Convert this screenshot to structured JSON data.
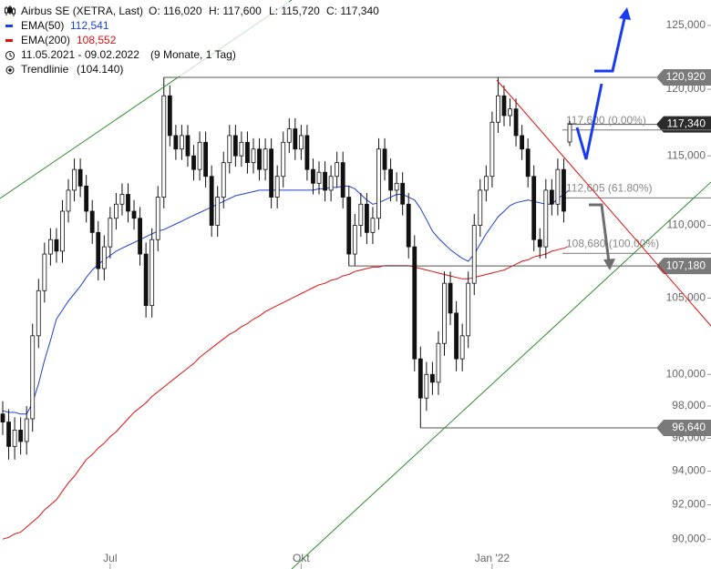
{
  "chart_data": {
    "type": "candlestick",
    "title": "Airbus SE (XETRA, Last)",
    "ohlc_text": [
      "O: 116,020",
      "H: 117,600",
      "L: 115,720",
      "C: 117,340"
    ],
    "period": "11.05.2021 - 09.02.2022",
    "period_note": "(9 Monate, 1 Tag)",
    "trendline": {
      "name": "Trendlinie",
      "label": "(104.140)",
      "color": "#2e8b2e"
    },
    "resistance_color": "#e01010",
    "log_scale": true,
    "ylim": [
      88.3,
      127.05
    ],
    "yticks": [
      {
        "value": 125,
        "label": "125,000"
      },
      {
        "value": 120,
        "label": "120,000"
      },
      {
        "value": 115,
        "label": "115,000"
      },
      {
        "value": 110,
        "label": "110,000"
      },
      {
        "value": 105,
        "label": "105,000"
      },
      {
        "value": 100,
        "label": "100,000"
      },
      {
        "value": 98,
        "label": "98,000"
      },
      {
        "value": 96,
        "label": "96,000"
      },
      {
        "value": 94,
        "label": "94,000"
      },
      {
        "value": 92,
        "label": "92,000"
      },
      {
        "value": 90,
        "label": "90,000"
      }
    ],
    "categories": [
      null,
      null,
      null,
      null,
      null,
      null,
      null,
      null,
      null,
      null,
      null,
      null,
      null,
      null,
      null,
      null,
      null,
      null,
      "Jul",
      null,
      null,
      null,
      null,
      null,
      null,
      null,
      null,
      null,
      null,
      null,
      null,
      null,
      null,
      null,
      null,
      null,
      null,
      null,
      null,
      null,
      null,
      null,
      null,
      null,
      null,
      null,
      null,
      null,
      null,
      null,
      "Okt",
      null,
      null,
      null,
      null,
      null,
      null,
      null,
      null,
      null,
      null,
      null,
      null,
      null,
      null,
      null,
      null,
      null,
      null,
      null,
      null,
      null,
      null,
      null,
      null,
      null,
      null,
      null,
      null,
      null,
      null,
      null,
      "Jan '22",
      null,
      null,
      null,
      null,
      null,
      null,
      null,
      null,
      null,
      null,
      null,
      null,
      null
    ],
    "open": [
      97.5,
      97.0,
      95.5,
      96.5,
      95.8,
      97.2,
      102.5,
      105.5,
      108.0,
      109.0,
      108.2,
      111.0,
      112.5,
      114.0,
      112.8,
      111.0,
      109.5,
      107.0,
      108.5,
      110.5,
      111.5,
      112.2,
      111.0,
      110.5,
      108.0,
      104.5,
      109.0,
      112.0,
      119.5,
      116.5,
      115.5,
      116.5,
      115.0,
      114.0,
      116.0,
      113.5,
      110.0,
      112.0,
      114.5,
      116.5,
      115.0,
      116.0,
      114.5,
      115.5,
      114.0,
      115.5,
      112.0,
      113.5,
      116.0,
      117.0,
      115.5,
      116.5,
      114.0,
      113.0,
      113.8,
      112.5,
      113.5,
      114.5,
      112.0,
      108.0,
      110.0,
      111.5,
      109.5,
      110.5,
      115.5,
      114.0,
      112.5,
      113.0,
      111.5,
      108.5,
      101.0,
      98.5,
      100.0,
      99.5,
      102.0,
      106.0,
      104.0,
      101.0,
      102.5,
      106.0,
      110.0,
      112.5,
      113.5,
      117.5,
      119.5,
      118.0,
      118.5,
      116.5,
      115.5,
      113.5,
      109.0,
      108.5,
      112.5,
      111.5,
      114.0,
      116.02
    ],
    "high": [
      98.3,
      97.8,
      97.3,
      97.3,
      98.0,
      103.3,
      106.3,
      108.8,
      109.8,
      109.8,
      111.8,
      113.3,
      114.8,
      114.8,
      113.6,
      111.8,
      110.3,
      109.3,
      111.3,
      112.3,
      113.0,
      113.0,
      111.8,
      111.3,
      108.8,
      109.8,
      112.8,
      120.92,
      120.3,
      117.3,
      117.3,
      117.3,
      115.8,
      116.8,
      116.8,
      114.3,
      112.8,
      115.3,
      117.3,
      117.3,
      116.8,
      116.8,
      116.3,
      116.3,
      116.3,
      116.3,
      114.3,
      116.8,
      117.8,
      117.8,
      117.3,
      117.3,
      114.8,
      114.6,
      114.6,
      114.3,
      115.3,
      115.3,
      112.8,
      110.8,
      112.3,
      112.3,
      111.3,
      116.3,
      116.3,
      114.8,
      113.8,
      113.8,
      112.3,
      109.3,
      101.8,
      100.8,
      100.8,
      102.8,
      106.8,
      106.8,
      104.8,
      103.3,
      106.8,
      110.8,
      113.3,
      114.3,
      118.3,
      120.92,
      120.3,
      119.3,
      119.3,
      117.3,
      116.3,
      114.3,
      109.8,
      113.3,
      113.3,
      114.8,
      114.8,
      117.6
    ],
    "low": [
      96.2,
      94.7,
      94.7,
      95.0,
      95.0,
      96.4,
      101.7,
      104.7,
      107.2,
      107.4,
      107.4,
      110.2,
      111.7,
      112.0,
      110.2,
      108.7,
      106.2,
      106.2,
      107.7,
      109.7,
      110.7,
      110.2,
      109.7,
      107.2,
      103.7,
      103.7,
      108.2,
      111.2,
      115.7,
      114.7,
      114.7,
      114.2,
      113.2,
      113.2,
      112.7,
      109.2,
      109.2,
      111.2,
      113.7,
      114.2,
      114.2,
      113.7,
      113.7,
      113.2,
      113.2,
      111.2,
      111.2,
      112.7,
      115.2,
      114.7,
      114.7,
      113.2,
      112.2,
      112.2,
      111.7,
      111.7,
      112.7,
      111.2,
      107.18,
      107.2,
      109.2,
      108.7,
      108.7,
      109.7,
      113.2,
      111.7,
      111.7,
      110.7,
      107.7,
      100.2,
      96.64,
      97.7,
      98.7,
      98.7,
      101.2,
      103.2,
      100.2,
      100.2,
      101.7,
      105.2,
      109.2,
      111.7,
      112.7,
      116.7,
      117.2,
      117.2,
      115.7,
      114.7,
      112.7,
      108.2,
      107.7,
      107.7,
      110.7,
      110.7,
      110.2,
      115.72
    ],
    "close": [
      97.0,
      95.5,
      96.5,
      95.8,
      97.2,
      102.5,
      105.5,
      108.0,
      109.0,
      108.2,
      111.0,
      112.5,
      114.0,
      112.8,
      111.0,
      109.5,
      107.0,
      108.5,
      110.5,
      111.5,
      112.2,
      111.0,
      110.5,
      108.0,
      104.5,
      109.0,
      112.0,
      119.5,
      116.5,
      115.5,
      116.5,
      115.0,
      114.0,
      116.0,
      113.5,
      110.0,
      112.0,
      114.5,
      116.5,
      115.0,
      116.0,
      114.5,
      115.5,
      114.0,
      115.5,
      112.0,
      113.5,
      116.0,
      117.0,
      115.5,
      116.5,
      114.0,
      113.0,
      113.8,
      112.5,
      113.5,
      114.5,
      112.0,
      108.0,
      110.0,
      111.5,
      109.5,
      110.5,
      115.5,
      114.0,
      112.5,
      113.0,
      111.5,
      108.5,
      101.0,
      98.5,
      100.0,
      99.5,
      102.0,
      106.0,
      104.0,
      101.0,
      102.5,
      106.0,
      110.0,
      112.5,
      113.5,
      117.5,
      119.5,
      118.0,
      118.5,
      116.5,
      115.5,
      113.5,
      109.0,
      108.5,
      112.5,
      111.5,
      114.0,
      111.0,
      117.34
    ],
    "overlays": [
      {
        "name": "EMA(50)",
        "color": "#1c3fd8",
        "last_label": "112,541",
        "values": [
          97.7,
          97.6,
          97.6,
          97.5,
          97.5,
          98.2,
          99.4,
          100.9,
          102.2,
          103.6,
          104.2,
          104.8,
          105.3,
          105.8,
          106.4,
          106.9,
          107.3,
          107.6,
          107.9,
          108.2,
          108.4,
          108.6,
          108.8,
          109.0,
          109.2,
          109.4,
          109.6,
          109.7,
          109.9,
          110.1,
          110.3,
          110.5,
          110.7,
          110.9,
          111.1,
          111.3,
          111.5,
          111.7,
          111.9,
          112.1,
          112.2,
          112.3,
          112.4,
          112.5,
          112.5,
          112.5,
          112.5,
          112.5,
          112.5,
          112.5,
          112.5,
          112.5,
          112.5,
          112.6,
          112.6,
          112.7,
          112.7,
          112.8,
          112.8,
          112.6,
          112.2,
          111.8,
          111.5,
          111.6,
          111.8,
          112.0,
          112.2,
          112.2,
          112.0,
          111.8,
          111.2,
          110.4,
          109.6,
          109.1,
          108.7,
          108.3,
          108.0,
          107.7,
          107.5,
          108.0,
          108.7,
          109.4,
          110.0,
          110.6,
          111.0,
          111.4,
          111.6,
          111.7,
          111.8,
          111.7,
          111.6,
          111.5,
          111.5,
          111.9,
          112.2,
          112.541
        ]
      },
      {
        "name": "EMA(200)",
        "color": "#e01010",
        "last_label": "108,552",
        "values": [
          90.0,
          90.1,
          90.3,
          90.4,
          90.7,
          91.0,
          91.3,
          91.7,
          92.0,
          92.3,
          92.8,
          93.3,
          93.7,
          94.2,
          94.7,
          95.0,
          95.4,
          95.7,
          96.1,
          96.4,
          96.8,
          97.2,
          97.6,
          97.9,
          98.2,
          98.6,
          98.9,
          99.2,
          99.5,
          99.8,
          100.1,
          100.4,
          100.7,
          101.1,
          101.4,
          101.7,
          102.0,
          102.3,
          102.6,
          102.8,
          103.1,
          103.3,
          103.6,
          103.8,
          104.1,
          104.3,
          104.5,
          104.7,
          104.9,
          105.1,
          105.3,
          105.5,
          105.7,
          105.9,
          106.0,
          106.2,
          106.3,
          106.5,
          106.6,
          106.8,
          106.9,
          107.0,
          107.1,
          107.1,
          107.2,
          107.2,
          107.2,
          107.2,
          107.2,
          107.1,
          107.0,
          106.9,
          106.8,
          106.7,
          106.6,
          106.5,
          106.4,
          106.3,
          106.3,
          106.4,
          106.5,
          106.6,
          106.7,
          106.8,
          106.9,
          107.1,
          107.3,
          107.5,
          107.6,
          107.8,
          107.9,
          108.0,
          108.2,
          108.3,
          108.4,
          108.552
        ]
      }
    ],
    "levels": [
      {
        "value": 120.92,
        "label": "120,920",
        "color": "#7a7a7a"
      },
      {
        "value": 117.34,
        "label": "117,340",
        "color": "#2b2b2b"
      },
      {
        "value": 107.18,
        "label": "107,180",
        "color": "#7a7a7a"
      },
      {
        "value": 96.64,
        "label": "96,640",
        "color": "#7a7a7a"
      }
    ],
    "fibonacci": [
      {
        "value": 117.6,
        "label": "117,600 (0.00%)"
      },
      {
        "value": 112.605,
        "label": "112,605 (61.80%)"
      },
      {
        "value": 108.68,
        "label": "108,680 (100.00%)"
      }
    ]
  }
}
